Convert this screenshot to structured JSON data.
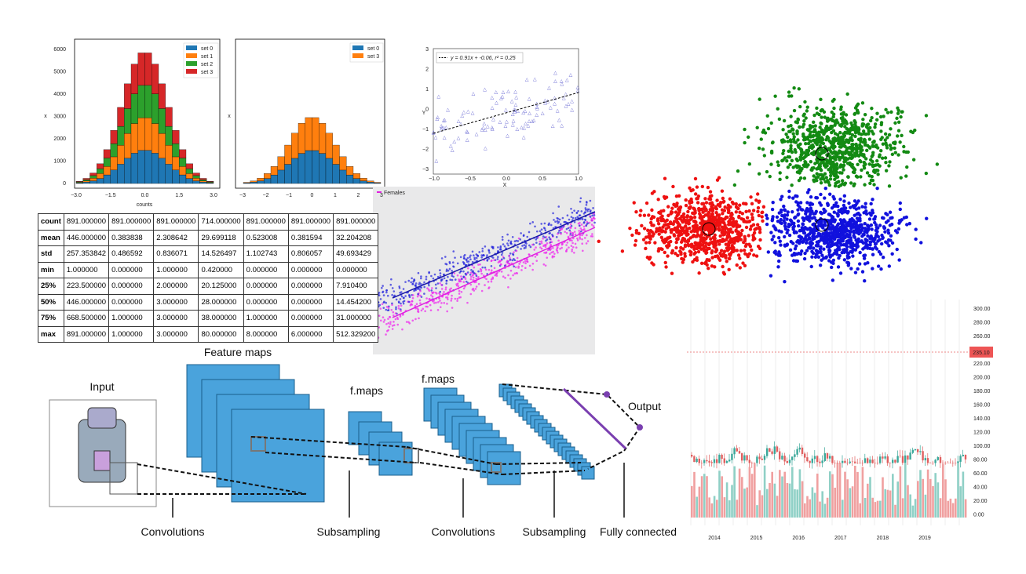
{
  "histogram_left": {
    "yticks": [
      "0",
      "1000",
      "2000",
      "3000",
      "4000",
      "5000",
      "6000"
    ],
    "xticks": [
      "−3.0",
      "−1.5",
      "0.0",
      "1.5",
      "3.0"
    ],
    "xlabel": "counts",
    "ylabel": "x",
    "legend": [
      "set 0",
      "set 1",
      "set 2",
      "set 3"
    ]
  },
  "histogram_right": {
    "xticks": [
      "−3",
      "−2",
      "−1",
      "0",
      "1",
      "2",
      "3"
    ],
    "ylabel": "x",
    "legend": [
      "set 0",
      "set 3"
    ]
  },
  "regression": {
    "yticks": [
      "3",
      "2",
      "1",
      "0",
      "−1",
      "−2",
      "−3"
    ],
    "xticks": [
      "−1.0",
      "−0.5",
      "0.0",
      "0.5",
      "1.0"
    ],
    "xlabel": "X",
    "ylabel": "Y",
    "legend": "y = 0.91x + -0.06, r² = 0.25"
  },
  "gender_scatter": {
    "legend": "Females"
  },
  "table": {
    "rows": [
      [
        "count",
        "891.000000",
        "891.000000",
        "891.000000",
        "714.000000",
        "891.000000",
        "891.000000",
        "891.000000"
      ],
      [
        "mean",
        "446.000000",
        "0.383838",
        "2.308642",
        "29.699118",
        "0.523008",
        "0.381594",
        "32.204208"
      ],
      [
        "std",
        "257.353842",
        "0.486592",
        "0.836071",
        "14.526497",
        "1.102743",
        "0.806057",
        "49.693429"
      ],
      [
        "min",
        "1.000000",
        "0.000000",
        "1.000000",
        "0.420000",
        "0.000000",
        "0.000000",
        "0.000000"
      ],
      [
        "25%",
        "223.500000",
        "0.000000",
        "2.000000",
        "20.125000",
        "0.000000",
        "0.000000",
        "7.910400"
      ],
      [
        "50%",
        "446.000000",
        "0.000000",
        "3.000000",
        "28.000000",
        "0.000000",
        "0.000000",
        "14.454200"
      ],
      [
        "75%",
        "668.500000",
        "1.000000",
        "3.000000",
        "38.000000",
        "1.000000",
        "0.000000",
        "31.000000"
      ],
      [
        "max",
        "891.000000",
        "1.000000",
        "3.000000",
        "80.000000",
        "8.000000",
        "6.000000",
        "512.329200"
      ]
    ]
  },
  "cnn": {
    "input": "Input",
    "feature_maps": "Feature maps",
    "fmaps_1": "f.maps",
    "fmaps_2": "f.maps",
    "output": "Output",
    "stages": [
      "Convolutions",
      "Subsampling",
      "Convolutions",
      "Subsampling",
      "Fully connected"
    ]
  },
  "stock": {
    "yticks": [
      "300.00",
      "280.00",
      "260.00",
      "220.00",
      "200.00",
      "180.00",
      "160.00",
      "140.00",
      "120.00",
      "100.00",
      "80.00",
      "60.00",
      "40.00",
      "20.00",
      "0.00"
    ],
    "price_label": "235.10",
    "xticks": [
      "2014",
      "2015",
      "2016",
      "2017",
      "2018",
      "2019"
    ]
  }
}
